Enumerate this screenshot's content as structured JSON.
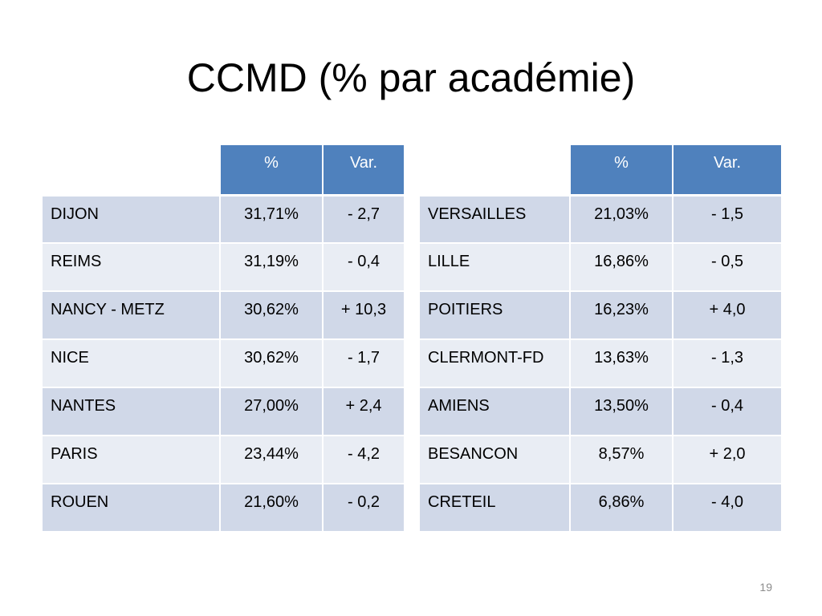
{
  "slide": {
    "title": "CCMD (% par académie)",
    "page_number": "19"
  },
  "colors": {
    "header_bg": "#4f81bd",
    "row_odd_bg": "#d0d8e8",
    "row_even_bg": "#e9edf4"
  },
  "tables": [
    {
      "headers": [
        "",
        "%",
        "Var."
      ],
      "rows": [
        [
          "DIJON",
          "31,71%",
          "- 2,7"
        ],
        [
          "REIMS",
          "31,19%",
          "- 0,4"
        ],
        [
          "NANCY - METZ",
          "30,62%",
          "+ 10,3"
        ],
        [
          "NICE",
          "30,62%",
          "- 1,7"
        ],
        [
          "NANTES",
          "27,00%",
          "+ 2,4"
        ],
        [
          "PARIS",
          "23,44%",
          "- 4,2"
        ],
        [
          "ROUEN",
          "21,60%",
          "- 0,2"
        ]
      ]
    },
    {
      "headers": [
        "",
        "%",
        "Var."
      ],
      "rows": [
        [
          "VERSAILLES",
          "21,03%",
          "- 1,5"
        ],
        [
          "LILLE",
          "16,86%",
          "- 0,5"
        ],
        [
          "POITIERS",
          "16,23%",
          "+ 4,0"
        ],
        [
          "CLERMONT-FD",
          "13,63%",
          "- 1,3"
        ],
        [
          "AMIENS",
          "13,50%",
          "- 0,4"
        ],
        [
          "BESANCON",
          "8,57%",
          "+ 2,0"
        ],
        [
          "CRETEIL",
          "6,86%",
          "- 4,0"
        ]
      ]
    }
  ]
}
